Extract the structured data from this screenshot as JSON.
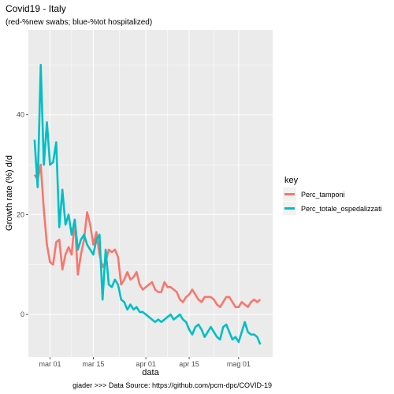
{
  "chart_data": {
    "type": "line",
    "title": "Covid19 - Italy",
    "subtitle": "(red-%new swabs; blue-%tot hospitalized)",
    "xlabel": "data",
    "ylabel": "Growth rate (%) d/d",
    "caption": "giader >>> Data Source: https://github.com/pcm-dpc/COVID-19",
    "legend_title": "key",
    "legend_position": "right",
    "grid": true,
    "x_ticks": [
      {
        "date": "2020-03-01",
        "label": "mar 01"
      },
      {
        "date": "2020-03-15",
        "label": "mar 15"
      },
      {
        "date": "2020-04-01",
        "label": "apr 01"
      },
      {
        "date": "2020-04-15",
        "label": "apr 15"
      },
      {
        "date": "2020-05-01",
        "label": "mag 01"
      }
    ],
    "y_ticks": [
      0,
      20,
      40
    ],
    "xlim": [
      "2020-02-23",
      "2020-05-12"
    ],
    "ylim": [
      -8.5,
      57
    ],
    "x_start": "2020-02-25",
    "series": [
      {
        "name": "Perc_tamponi",
        "color": "#F8766D",
        "values": [
          28,
          27,
          30,
          21,
          14,
          10.5,
          10,
          14.5,
          15,
          9,
          12,
          13.5,
          12,
          19,
          8,
          12,
          15,
          20.5,
          18,
          14,
          16.5,
          12,
          9.5,
          10.5,
          13,
          12.5,
          13,
          11.5,
          6,
          7,
          8.5,
          7,
          7.5,
          8.5,
          6,
          5,
          5.5,
          6,
          6.5,
          5,
          4.5,
          4.5,
          6.5,
          5.5,
          5.5,
          5,
          4.5,
          3,
          2.5,
          3.5,
          4,
          5,
          4,
          3,
          2.5,
          3.5,
          3.5,
          3.5,
          3,
          2,
          1.5,
          2.5,
          3.5,
          3.5,
          2.5,
          1.5,
          1.5,
          2.5,
          2,
          1.5,
          2.5,
          3,
          2.5,
          3
        ]
      },
      {
        "name": "Perc_totale_ospedalizzati",
        "color": "#00BFC4",
        "values": [
          35,
          25.5,
          50,
          30,
          38.5,
          30,
          30.5,
          34.5,
          17.5,
          25,
          18,
          20,
          16,
          19,
          13,
          15,
          16,
          14,
          13,
          12,
          15,
          16,
          3,
          13,
          6,
          5.5,
          7,
          6,
          3,
          2.5,
          1,
          2,
          1,
          1.5,
          0.5,
          0.5,
          0,
          -0.5,
          -1,
          -1.5,
          -1,
          -1.5,
          -1,
          -0.5,
          0,
          -1,
          -0.5,
          0,
          -1,
          -1.5,
          -3,
          -4,
          -2.5,
          -2,
          -3,
          -4.5,
          -3.5,
          -2.5,
          -3.5,
          -4.5,
          -5,
          -2.5,
          -2,
          -3.5,
          -5,
          -4.5,
          -5.5,
          -3.5,
          -1.5,
          -3.5,
          -4,
          -4,
          -4.5,
          -6
        ]
      }
    ]
  }
}
